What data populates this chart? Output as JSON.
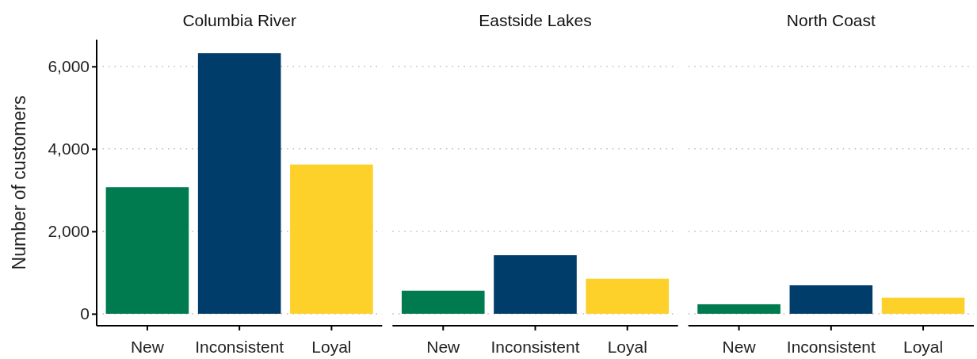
{
  "chart_data": {
    "type": "bar",
    "ylabel": "Number of customers",
    "annotations": [
      "Columbia River",
      "Eastside Lakes",
      "North Coast"
    ],
    "categories": [
      "New",
      "Inconsistent",
      "Loyal",
      "New",
      "Inconsistent",
      "Loyal",
      "New",
      "Inconsistent",
      "Loyal"
    ],
    "values": [
      3070,
      6320,
      3620,
      560,
      1420,
      850,
      230,
      690,
      390
    ],
    "colors": [
      "#007a4f",
      "#003d6a",
      "#fdd02a",
      "#007a4f",
      "#003d6a",
      "#fdd02a",
      "#007a4f",
      "#003d6a",
      "#fdd02a"
    ],
    "ylim": [
      -290,
      6650
    ],
    "yticks": [
      {
        "value": 0,
        "label": "0"
      },
      {
        "value": 2000,
        "label": "2,000"
      },
      {
        "value": 4000,
        "label": "4,000"
      },
      {
        "value": 6000,
        "label": "6,000"
      }
    ],
    "grid": "y"
  }
}
